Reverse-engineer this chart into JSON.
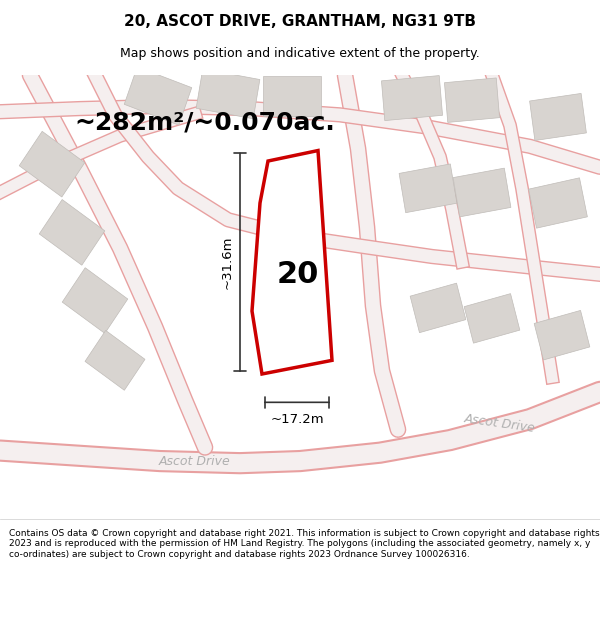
{
  "title": "20, ASCOT DRIVE, GRANTHAM, NG31 9TB",
  "subtitle": "Map shows position and indicative extent of the property.",
  "area_text": "~282m²/~0.070ac.",
  "width_label": "~17.2m",
  "height_label": "~31.6m",
  "number_label": "20",
  "footer_text": "Contains OS data © Crown copyright and database right 2021. This information is subject to Crown copyright and database rights 2023 and is reproduced with the permission of HM Land Registry. The polygons (including the associated geometry, namely x, y co-ordinates) are subject to Crown copyright and database rights 2023 Ordnance Survey 100026316.",
  "map_bg_color": "#f5f2ef",
  "plot_outline_color": "#cc0000",
  "road_line_color": "#e8a0a0",
  "road_center_color": "#f5efef",
  "building_color": "#d8d4d0",
  "building_edge_color": "#c0bcb8",
  "dim_line_color": "#333333",
  "title_fontsize": 11,
  "subtitle_fontsize": 9,
  "area_fontsize": 18,
  "footer_fontsize": 6.5
}
